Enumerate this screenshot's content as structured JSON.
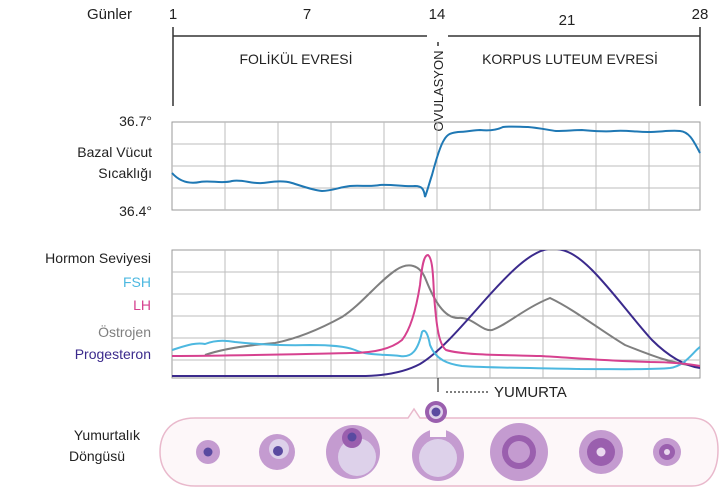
{
  "days": {
    "label": "Günler",
    "ticks": [
      "1",
      "7",
      "14",
      "21",
      "28"
    ]
  },
  "phases": {
    "follicular": "FOLİKÜL EVRESİ",
    "ovulation": "OVULASYON",
    "luteal": "KORPUS LUTEUM EVRESİ"
  },
  "temperature": {
    "label_line1": "Bazal Vücut",
    "label_line2": "Sıcaklığı",
    "max_label": "36.7°",
    "min_label": "36.4°",
    "color": "#1f78b4"
  },
  "hormones": {
    "title": "Hormon Seviyesi",
    "fsh": "FSH",
    "lh": "LH",
    "estrogen": "Östrojen",
    "progesterone": "Progesteron",
    "colors": {
      "fsh": "#4db8e0",
      "lh": "#d6418f",
      "estrogen": "#7f7f7f",
      "progesterone": "#3b2a8c"
    }
  },
  "egg_label": "YUMURTA",
  "ovarian_cycle": {
    "line1": "Yumurtalık",
    "line2": "Döngüsü",
    "colors": {
      "outline": "#e9b9cc",
      "follicle": "#c49bd0",
      "follicle_dark": "#9a5fae",
      "antrum": "#ddd1ea",
      "oocyte": "#5a4aa0"
    }
  }
}
